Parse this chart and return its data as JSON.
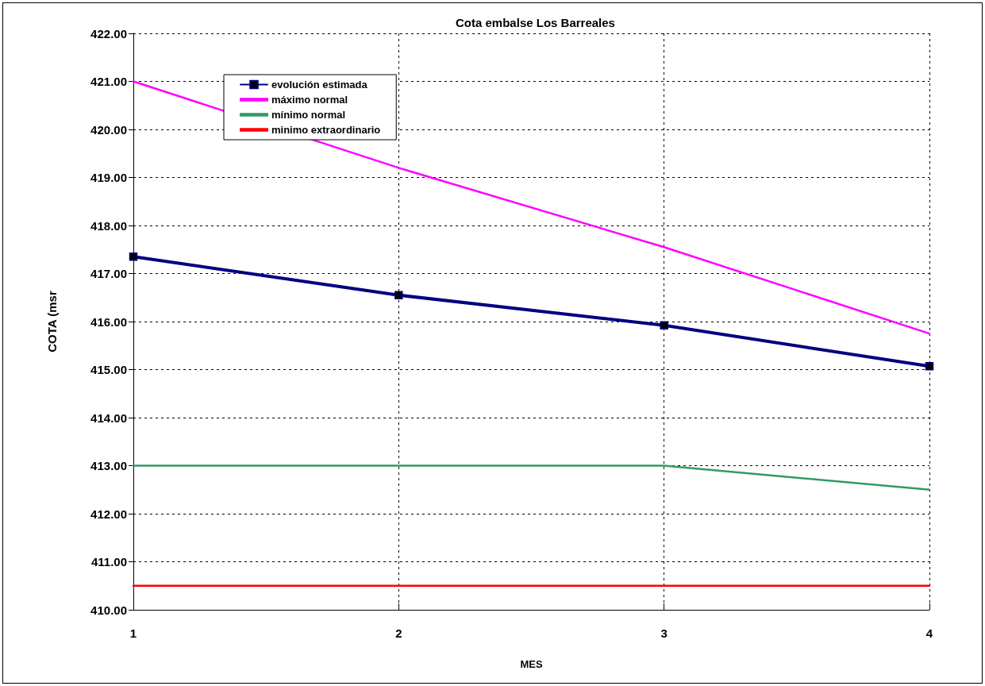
{
  "chart_data": {
    "type": "line",
    "title": "Cota embalse Los Barreales",
    "xlabel": "MES",
    "ylabel": "COTA (msr",
    "categories": [
      "1",
      "2",
      "3",
      "4"
    ],
    "series": [
      {
        "name": "evolución estimada",
        "color": "#000080",
        "values": [
          417.35,
          416.55,
          415.92,
          415.07
        ],
        "marker": "square"
      },
      {
        "name": "máximo normal",
        "color": "#ff00ff",
        "values": [
          421.0,
          419.2,
          417.55,
          415.75
        ],
        "marker": "none"
      },
      {
        "name": "mínimo normal",
        "color": "#339966",
        "values": [
          413.0,
          413.0,
          413.0,
          412.5
        ],
        "marker": "none"
      },
      {
        "name": "minimo extraordinario",
        "color": "#ff0000",
        "values": [
          410.5,
          410.5,
          410.5,
          410.5
        ],
        "marker": "none"
      }
    ],
    "ylim": [
      410,
      422
    ],
    "yticks": [
      {
        "value": 410,
        "label": "410.00"
      },
      {
        "value": 411,
        "label": "411.00"
      },
      {
        "value": 412,
        "label": "412.00"
      },
      {
        "value": 413,
        "label": "413.00"
      },
      {
        "value": 414,
        "label": "414.00"
      },
      {
        "value": 415,
        "label": "415.00"
      },
      {
        "value": 416,
        "label": "416.00"
      },
      {
        "value": 417,
        "label": "417.00"
      },
      {
        "value": 418,
        "label": "418.00"
      },
      {
        "value": 419,
        "label": "419.00"
      },
      {
        "value": 420,
        "label": "420.00"
      },
      {
        "value": 421,
        "label": "421.00"
      },
      {
        "value": 422,
        "label": "422.00"
      }
    ],
    "grid": true,
    "legend": "top left",
    "line_style": "solid"
  }
}
